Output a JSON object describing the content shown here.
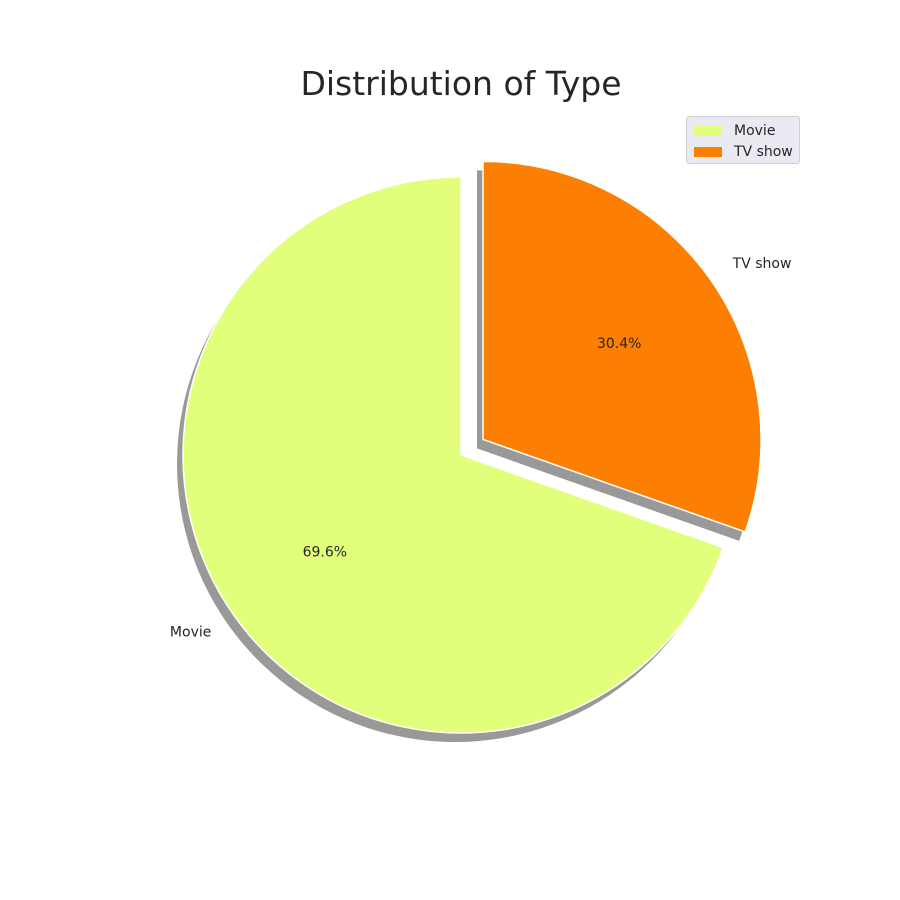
{
  "chart_data": {
    "type": "pie",
    "title": "Distribution of Type",
    "categories": [
      "Movie",
      "TV show"
    ],
    "values": [
      69.6,
      30.4
    ],
    "percent_labels": [
      "69.6%",
      "30.4%"
    ],
    "colors": [
      "#e1ff7a",
      "#fd7f02"
    ],
    "exploded": [
      "",
      "TV show"
    ],
    "shadow": true,
    "start_angle": 90,
    "legend": {
      "position": "top-right",
      "items": [
        {
          "label": "Movie",
          "color": "#e1ff7a"
        },
        {
          "label": "TV show",
          "color": "#fd7f02"
        }
      ]
    }
  }
}
